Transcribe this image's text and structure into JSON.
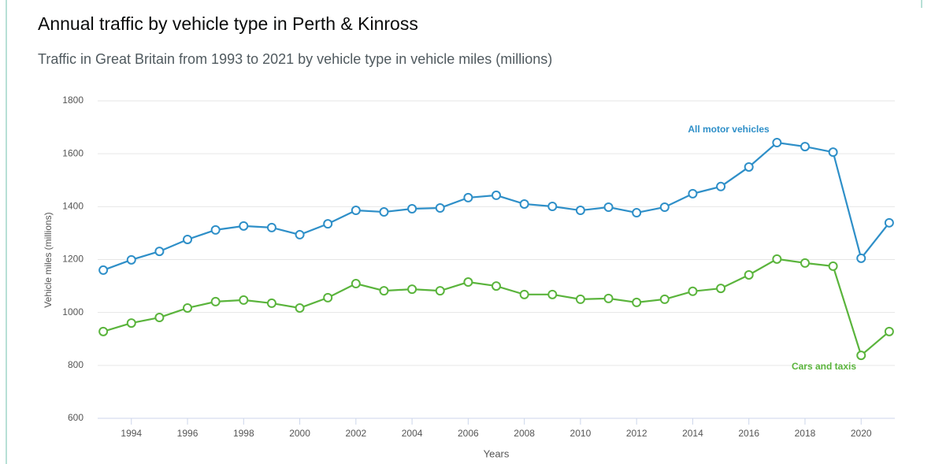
{
  "chart_data": {
    "type": "line",
    "title": "Annual traffic by vehicle type in Perth & Kinross",
    "subtitle": "Traffic in Great Britain from 1993 to 2021 by vehicle type in vehicle miles (millions)",
    "x_label": "Years",
    "y_label": "Vehicle miles (millions)",
    "x": [
      1993,
      1994,
      1995,
      1996,
      1997,
      1998,
      1999,
      2000,
      2001,
      2002,
      2003,
      2004,
      2005,
      2006,
      2007,
      2008,
      2009,
      2010,
      2011,
      2012,
      2013,
      2014,
      2015,
      2016,
      2017,
      2018,
      2019,
      2020,
      2021
    ],
    "series": [
      {
        "name": "All motor vehicles",
        "color": "#2e8fc8",
        "values": [
          1160,
          1199,
          1231,
          1276,
          1312,
          1327,
          1321,
          1294,
          1335,
          1386,
          1380,
          1392,
          1395,
          1434,
          1443,
          1410,
          1401,
          1386,
          1398,
          1377,
          1398,
          1449,
          1476,
          1550,
          1642,
          1627,
          1606,
          1205,
          1339
        ]
      },
      {
        "name": "Cars and taxis",
        "color": "#5ab43c",
        "values": [
          928,
          960,
          981,
          1017,
          1041,
          1047,
          1035,
          1017,
          1056,
          1109,
          1082,
          1088,
          1082,
          1115,
          1100,
          1068,
          1068,
          1050,
          1053,
          1038,
          1050,
          1080,
          1091,
          1142,
          1202,
          1187,
          1175,
          838,
          928
        ]
      }
    ],
    "xlim": [
      1992.8,
      2021.2
    ],
    "xticks": [
      1994,
      1996,
      1998,
      2000,
      2002,
      2004,
      2006,
      2008,
      2010,
      2012,
      2014,
      2016,
      2018,
      2020
    ],
    "ylim": [
      600,
      1800
    ],
    "yticks": [
      600,
      800,
      1000,
      1200,
      1400,
      1600,
      1800
    ],
    "grid": true
  }
}
